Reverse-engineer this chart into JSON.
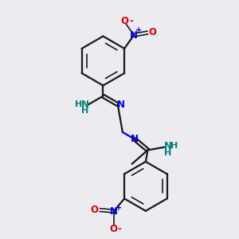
{
  "bg_color": "#ebebf0",
  "bond_color": "#1a1a1a",
  "N_color": "#0000ee",
  "O_color": "#dd0000",
  "NH_color": "#008080",
  "figsize": [
    3.0,
    3.0
  ],
  "dpi": 100,
  "xlim": [
    0,
    10
  ],
  "ylim": [
    0,
    10
  ]
}
